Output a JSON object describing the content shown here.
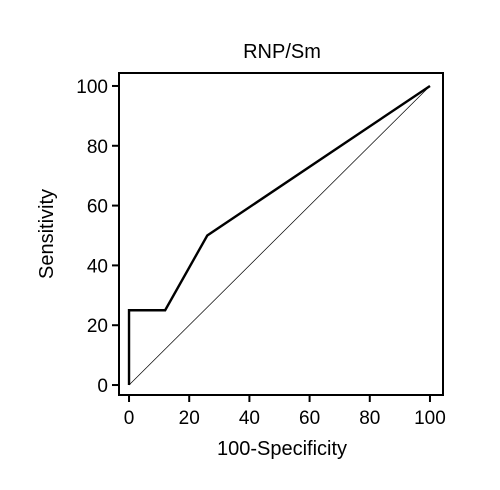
{
  "chart_data": {
    "type": "line",
    "title": "RNP/Sm",
    "xlabel": "100-Specificity",
    "ylabel": "Sensitivity",
    "xlim": [
      -3,
      104
    ],
    "ylim": [
      -3,
      104
    ],
    "x_ticks": [
      0,
      20,
      40,
      60,
      80,
      100
    ],
    "y_ticks": [
      0,
      20,
      40,
      60,
      80,
      100
    ],
    "x_tick_labels": [
      "0",
      "20",
      "40",
      "60",
      "80",
      "100"
    ],
    "y_tick_labels": [
      "0",
      "20",
      "40",
      "60",
      "80",
      "100"
    ],
    "grid": false,
    "series": [
      {
        "role": "roc-curve",
        "x": [
          0,
          0,
          12,
          26,
          100
        ],
        "y": [
          0,
          25,
          25,
          50,
          100
        ]
      },
      {
        "role": "reference-diagonal",
        "x": [
          0,
          100
        ],
        "y": [
          0,
          100
        ]
      }
    ]
  }
}
